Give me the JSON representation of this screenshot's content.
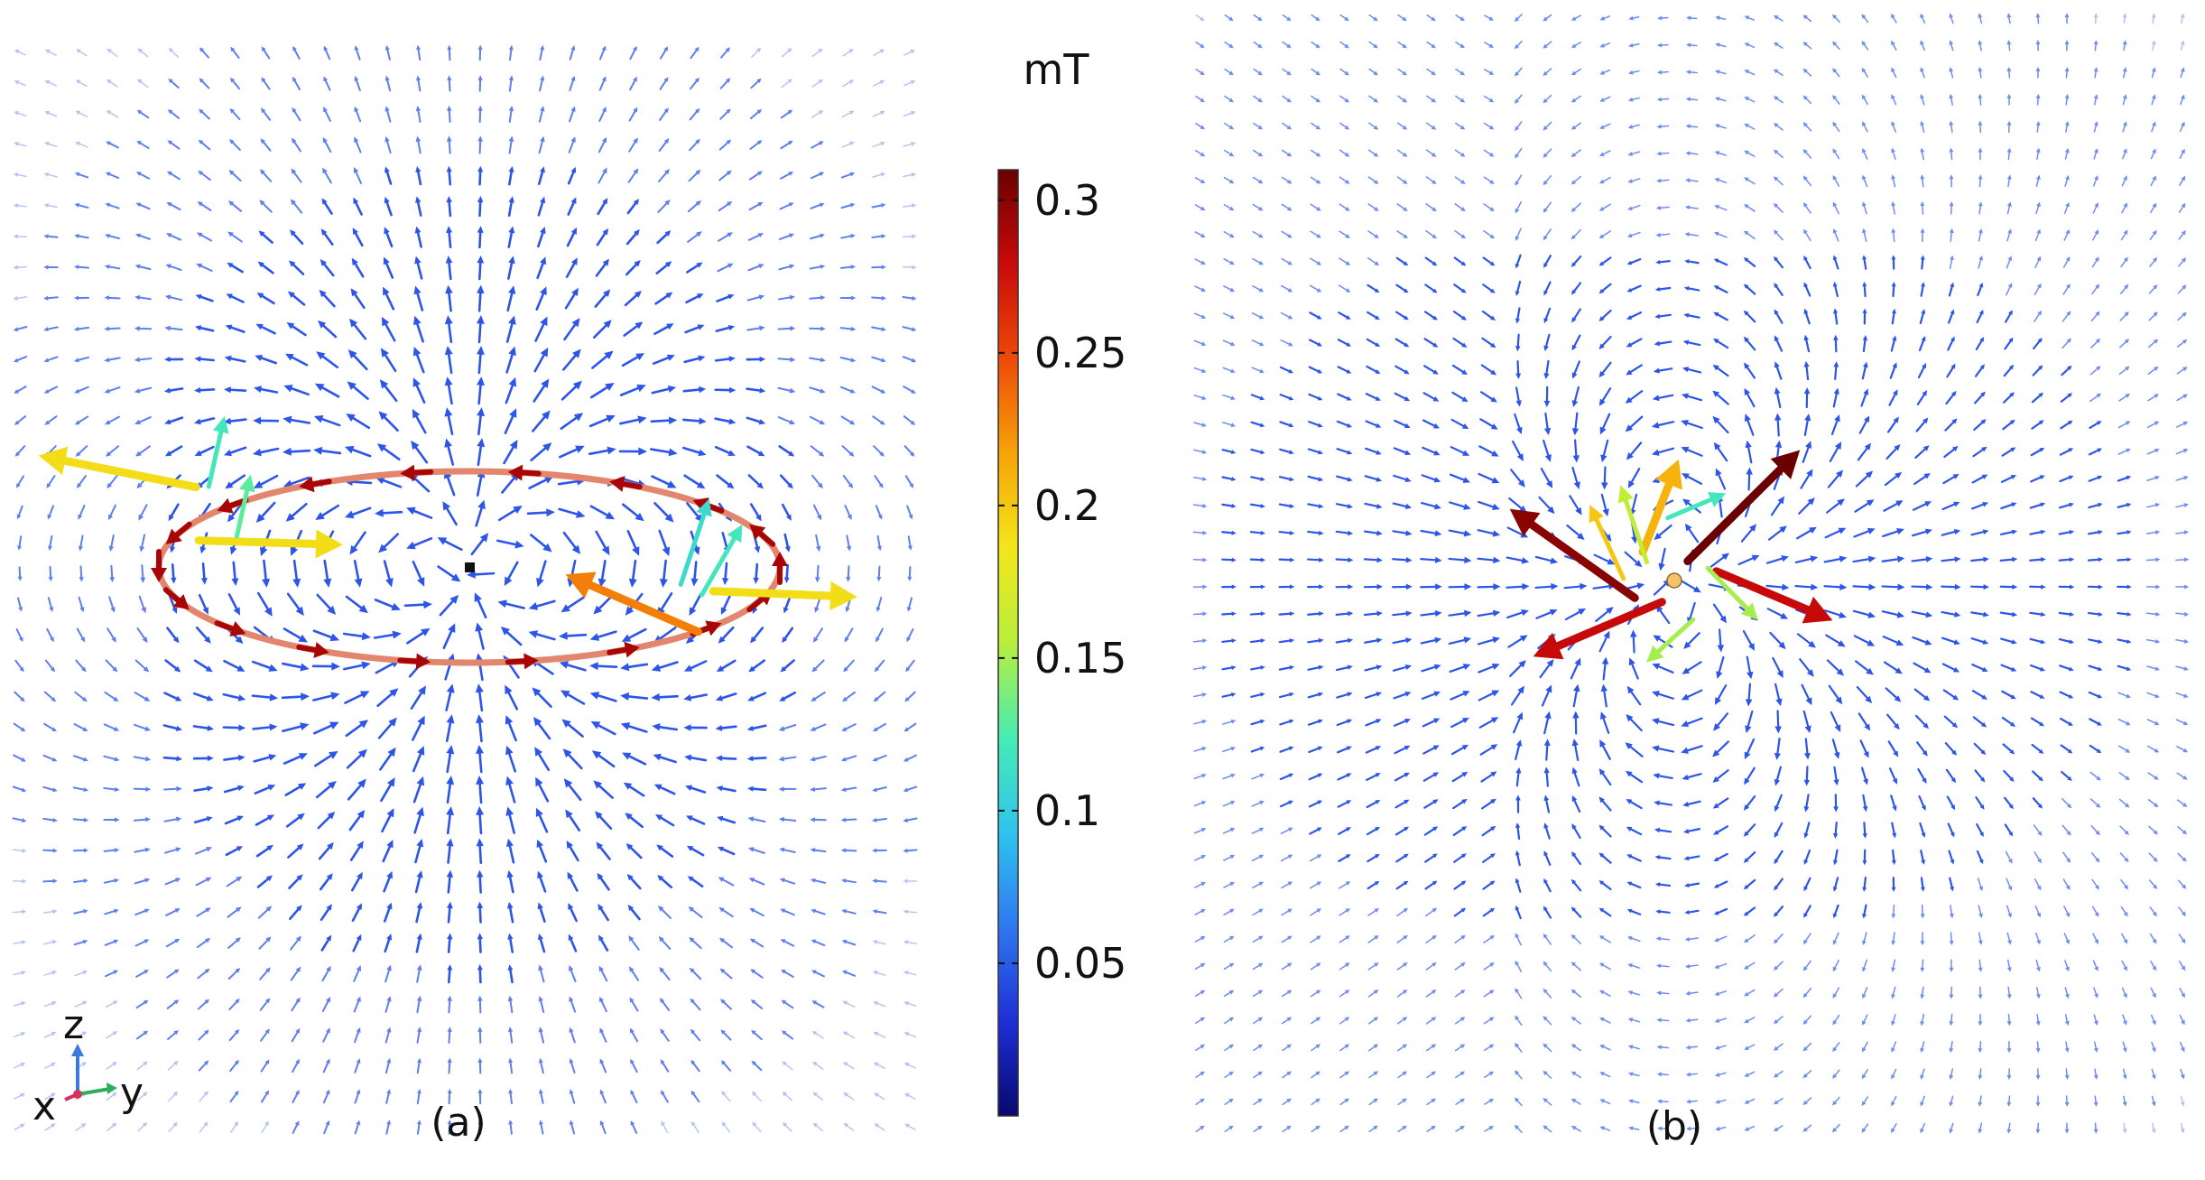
{
  "colorbar": {
    "unit": "mT",
    "min": 0,
    "max": 0.31,
    "ticks": [
      "0.3",
      "0.25",
      "0.2",
      "0.15",
      "0.1",
      "0.05"
    ],
    "colormap": [
      "#08086e",
      "#1e2fd6",
      "#2f78f0",
      "#2fc4ee",
      "#46ecb4",
      "#b9ee3c",
      "#f3e61a",
      "#f6a408",
      "#ee4a08",
      "#c90a0a",
      "#6b0000"
    ]
  },
  "panels": {
    "a": {
      "label": "(a)"
    },
    "b": {
      "label": "(b)"
    }
  },
  "axes_triad": {
    "z": "z",
    "x": "x",
    "y": "y"
  },
  "colors": {
    "loop_ring": "#e2866e",
    "field_arrow_low": "#2d55e8",
    "grid_arrow_faint": "#b3c3f3",
    "center_marker_a": "#111111",
    "center_marker_b": "#f6c36b",
    "triad_z": "#3a7ad8",
    "triad_y": "#2fae5a",
    "triad_x": "#d8305a"
  }
}
